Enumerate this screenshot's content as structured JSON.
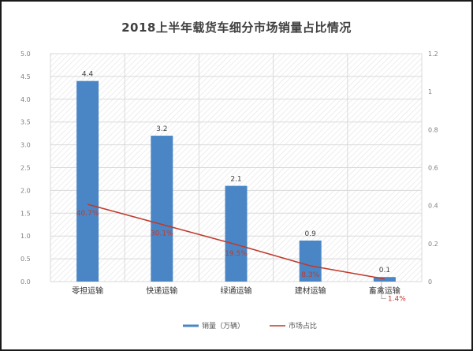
{
  "title": "2018上半年载货车细分市场销量占比情况",
  "colors": {
    "bar": "#4a86c6",
    "line": "#c0392b",
    "grid": "#d9d9d9",
    "hatch": "#dcdcdc"
  },
  "legend": {
    "bar_label": "销量（万辆）",
    "line_label": "市场占比"
  },
  "axes": {
    "left_ticks": [
      "0.0",
      "0.5",
      "1.0",
      "1.5",
      "2.0",
      "2.5",
      "3.0",
      "3.5",
      "4.0",
      "4.5",
      "5.0"
    ],
    "right_ticks": [
      "0",
      "0.2",
      "0.4",
      "0.6",
      "0.8",
      "1",
      "1.2"
    ]
  },
  "categories": [
    "零担运输",
    "快递运输",
    "绿通运输",
    "建材运输",
    "畜禽运输"
  ],
  "bar_labels": [
    "4.4",
    "3.2",
    "2.1",
    "0.9",
    "0.1"
  ],
  "line_labels": [
    "40.7%",
    "30.1%",
    "19.5%",
    "8.3%",
    "1.4%"
  ],
  "chart_data": {
    "type": "bar",
    "title": "2018上半年载货车细分市场销量占比情况",
    "xlabel": "",
    "ylabel": "",
    "categories": [
      "零担运输",
      "快递运输",
      "绿通运输",
      "建材运输",
      "畜禽运输"
    ],
    "series": [
      {
        "name": "销量（万辆）",
        "type": "bar",
        "axis": "left",
        "values": [
          4.4,
          3.2,
          2.1,
          0.9,
          0.1
        ]
      },
      {
        "name": "市场占比",
        "type": "line",
        "axis": "right",
        "values": [
          0.407,
          0.301,
          0.195,
          0.083,
          0.014
        ],
        "labels": [
          "40.7%",
          "30.1%",
          "19.5%",
          "8.3%",
          "1.4%"
        ]
      }
    ],
    "ylim": [
      0,
      5.0
    ],
    "y2lim": [
      0,
      1.2
    ],
    "yticks": [
      0,
      0.5,
      1.0,
      1.5,
      2.0,
      2.5,
      3.0,
      3.5,
      4.0,
      4.5,
      5.0
    ],
    "y2ticks": [
      0,
      0.2,
      0.4,
      0.6,
      0.8,
      1,
      1.2
    ],
    "grid": true,
    "legend_position": "bottom"
  }
}
